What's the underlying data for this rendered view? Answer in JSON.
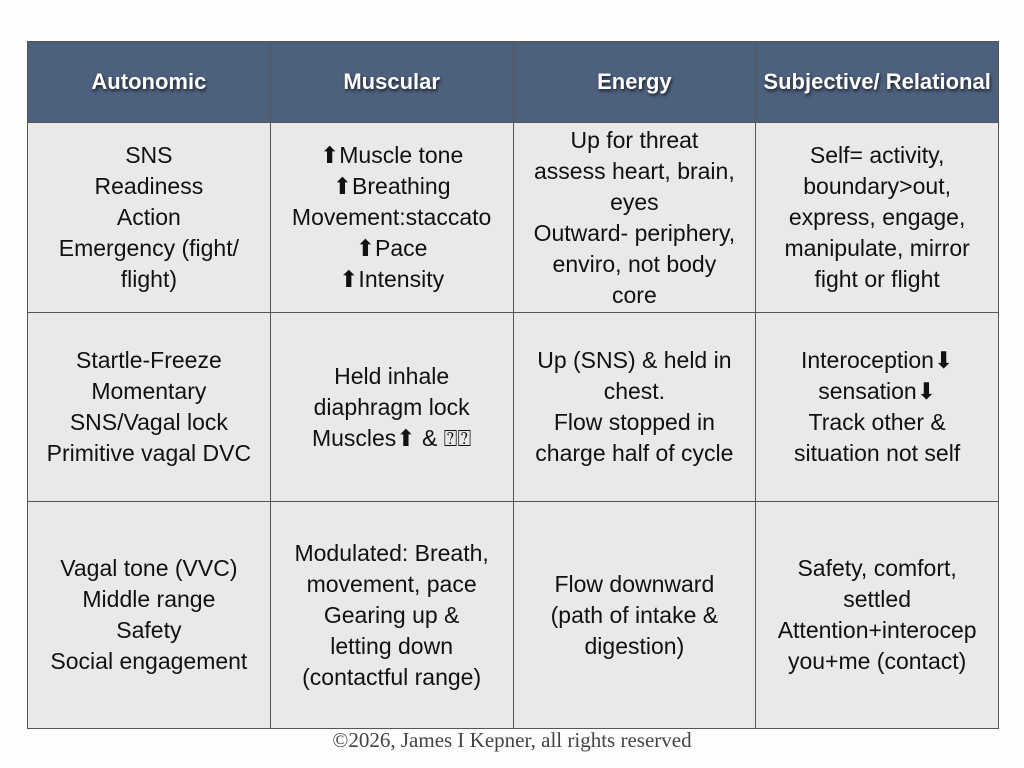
{
  "table": {
    "header": [
      "Autonomic",
      "Muscular",
      "Energy",
      "Subjective/ Relational"
    ],
    "rows": [
      [
        [
          "SNS",
          "Readiness",
          "Action",
          "Emergency (fight/",
          "flight)"
        ],
        [
          "⬆Muscle tone",
          "⬆Breathing",
          "Movement:staccato",
          "⬆Pace",
          "⬆Intensity"
        ],
        [
          "Up for threat",
          "assess heart, brain,",
          "eyes",
          "Outward- periphery,",
          "enviro, not body",
          "core"
        ],
        [
          "Self= activity,",
          "boundary>out,",
          "express, engage,",
          "manipulate, mirror",
          "fight or flight"
        ]
      ],
      [
        [
          "Startle-Freeze",
          "Momentary",
          "SNS/Vagal lock",
          "Primitive vagal DVC"
        ],
        [
          "Held inhale",
          "diaphragm lock",
          "Muscles⬆ & ⍰⍰"
        ],
        [
          "Up (SNS) & held in",
          "chest.",
          "Flow stopped in",
          "charge half of cycle"
        ],
        [
          "Interoception⬇",
          "sensation⬇",
          "Track other &",
          "situation not self"
        ]
      ],
      [
        [
          "Vagal tone (VVC)",
          "Middle range",
          "Safety",
          "Social engagement"
        ],
        [
          "Modulated: Breath,",
          "movement, pace",
          "Gearing up &",
          "letting down",
          "(contactful range)"
        ],
        [
          "Flow downward",
          "(path of intake &",
          "digestion)"
        ],
        [
          "Safety, comfort,",
          "settled",
          "Attention+interocep",
          "you+me (contact)"
        ]
      ]
    ]
  },
  "footer": "©2026, James I Kepner, all rights reserved"
}
